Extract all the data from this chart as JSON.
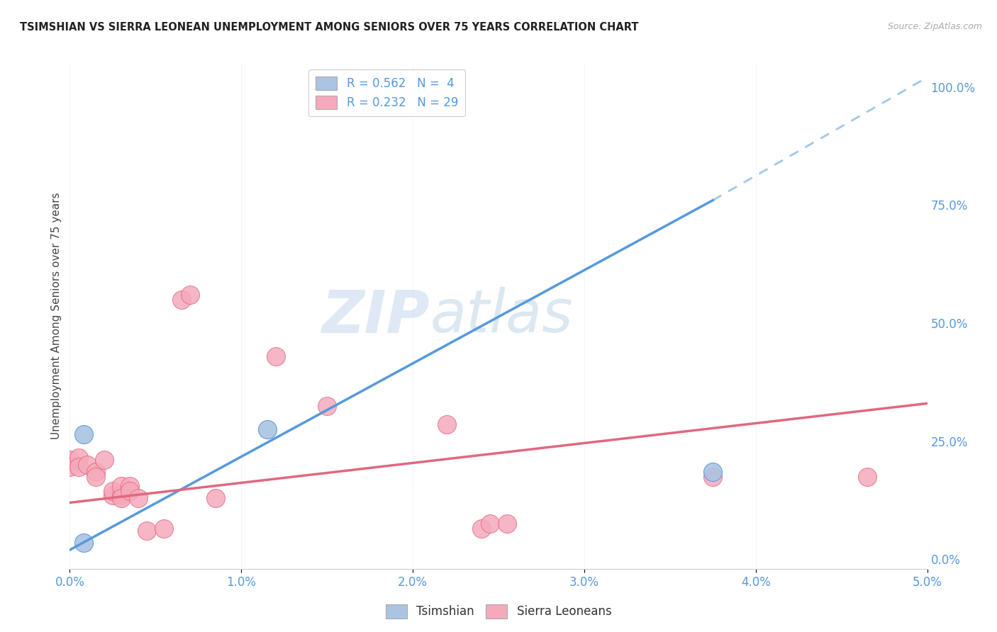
{
  "title": "TSIMSHIAN VS SIERRA LEONEAN UNEMPLOYMENT AMONG SENIORS OVER 75 YEARS CORRELATION CHART",
  "source": "Source: ZipAtlas.com",
  "ylabel": "Unemployment Among Seniors over 75 years",
  "watermark_zip": "ZIP",
  "watermark_atlas": "atlas",
  "legend1_label": "R = 0.562   N =  4",
  "legend2_label": "R = 0.232   N = 29",
  "tsimshian_color": "#aac4e2",
  "sierra_color": "#f5aabb",
  "tsimshian_line_color": "#5599dd",
  "sierra_line_color": "#e06880",
  "tsimshian_scatter": [
    [
      0.0008,
      0.265
    ],
    [
      0.0008,
      0.035
    ],
    [
      0.0115,
      0.275
    ],
    [
      0.0375,
      0.185
    ]
  ],
  "sierra_scatter": [
    [
      0.0,
      0.195
    ],
    [
      0.0,
      0.21
    ],
    [
      0.0005,
      0.215
    ],
    [
      0.0005,
      0.195
    ],
    [
      0.001,
      0.2
    ],
    [
      0.0015,
      0.185
    ],
    [
      0.0015,
      0.175
    ],
    [
      0.002,
      0.21
    ],
    [
      0.0025,
      0.135
    ],
    [
      0.0025,
      0.145
    ],
    [
      0.003,
      0.135
    ],
    [
      0.003,
      0.155
    ],
    [
      0.003,
      0.13
    ],
    [
      0.0035,
      0.155
    ],
    [
      0.0035,
      0.145
    ],
    [
      0.004,
      0.13
    ],
    [
      0.0045,
      0.06
    ],
    [
      0.0055,
      0.065
    ],
    [
      0.0065,
      0.55
    ],
    [
      0.007,
      0.56
    ],
    [
      0.0085,
      0.13
    ],
    [
      0.012,
      0.43
    ],
    [
      0.015,
      0.325
    ],
    [
      0.022,
      0.285
    ],
    [
      0.024,
      0.065
    ],
    [
      0.0245,
      0.075
    ],
    [
      0.0255,
      0.075
    ],
    [
      0.0375,
      0.175
    ],
    [
      0.0465,
      0.175
    ]
  ],
  "xlim": [
    0.0,
    0.05
  ],
  "ylim": [
    -0.02,
    1.05
  ],
  "tsimshian_line": {
    "x0": 0.0,
    "y0": 0.02,
    "x1": 0.0375,
    "y1": 0.76
  },
  "tsimshian_dash_line": {
    "x0": 0.0375,
    "y0": 0.76,
    "x1": 0.05,
    "y1": 1.02
  },
  "sierra_line": {
    "x0": 0.0,
    "y0": 0.12,
    "x1": 0.05,
    "y1": 0.33
  },
  "background_color": "#ffffff",
  "grid_color": "#dddddd",
  "figsize": [
    14.06,
    8.92
  ],
  "dpi": 100
}
